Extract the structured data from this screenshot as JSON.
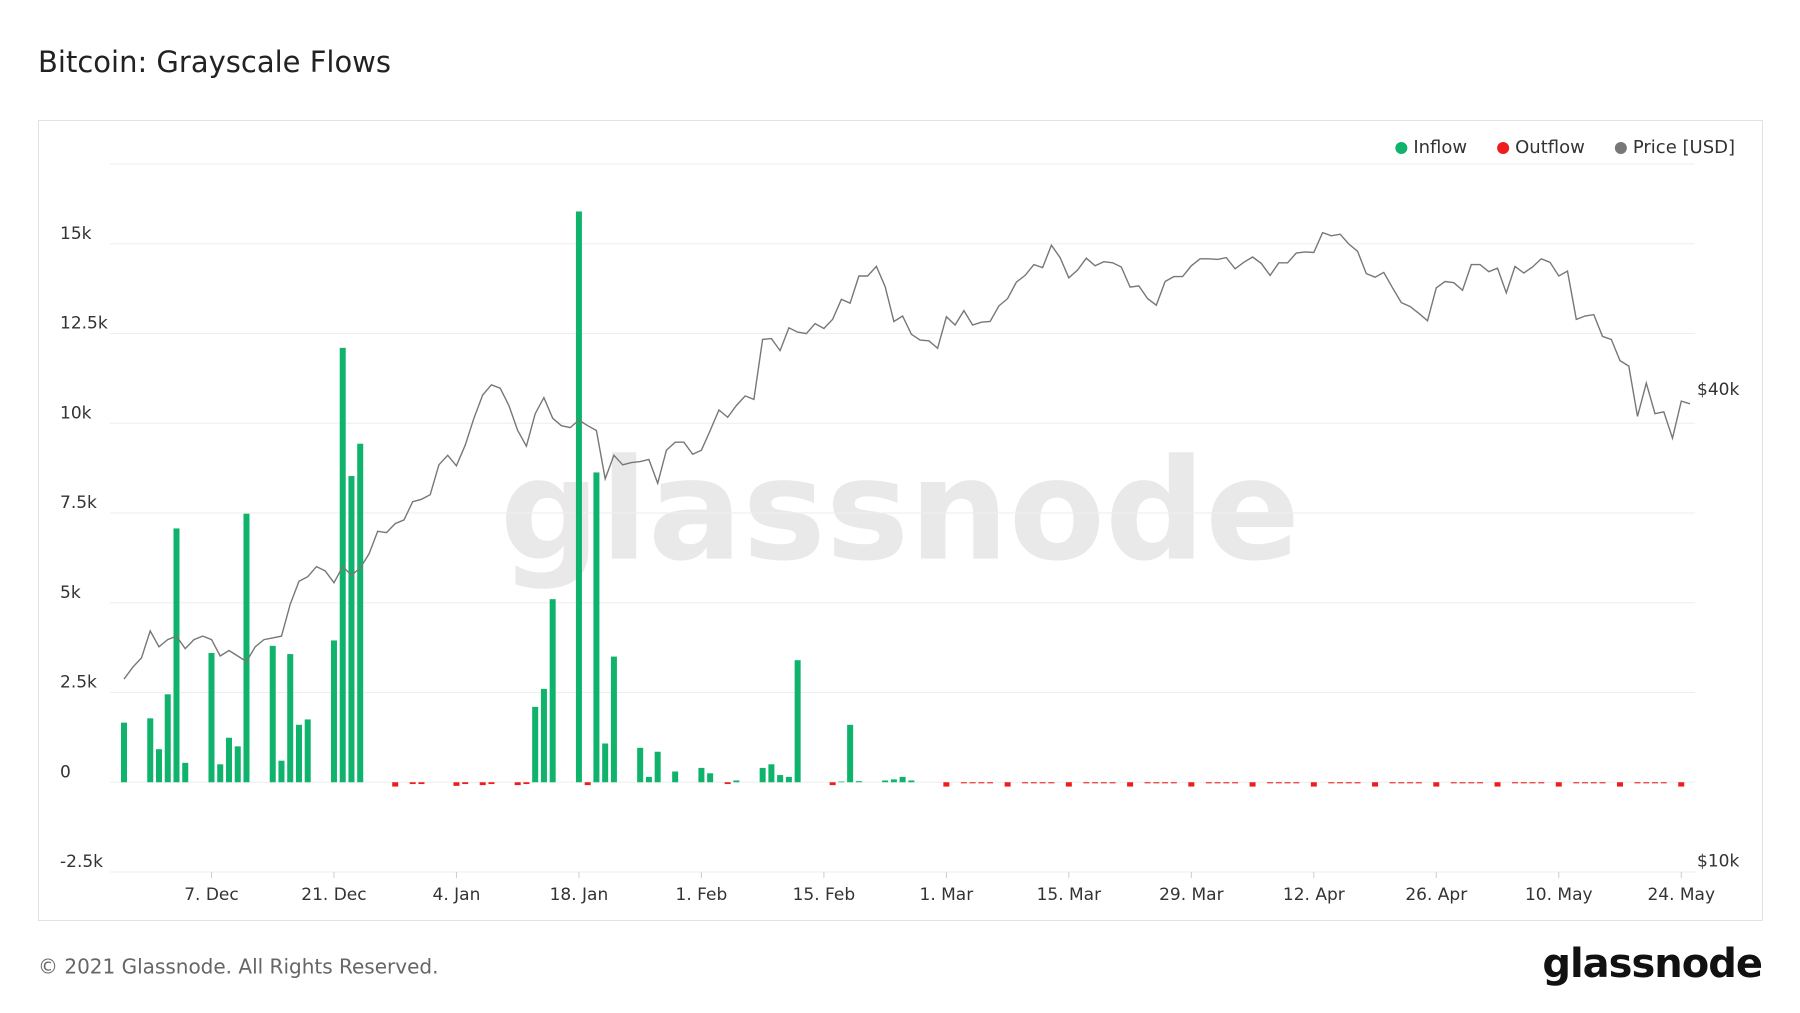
{
  "chart_data": {
    "type": "bar",
    "title": "Bitcoin: Grayscale Flows",
    "categories": [
      null,
      null,
      null,
      null,
      null,
      null,
      null,
      null,
      null,
      null,
      "7. Dec",
      null,
      null,
      null,
      null,
      null,
      null,
      null,
      null,
      null,
      null,
      null,
      null,
      null,
      "21. Dec",
      null,
      null,
      null,
      null,
      null,
      null,
      null,
      null,
      null,
      null,
      null,
      null,
      null,
      "4. Jan",
      null,
      null,
      null,
      null,
      null,
      null,
      null,
      null,
      null,
      null,
      null,
      null,
      null,
      "18. Jan",
      null,
      null,
      null,
      null,
      null,
      null,
      null,
      null,
      null,
      null,
      null,
      null,
      null,
      "1. Feb",
      null,
      null,
      null,
      null,
      null,
      null,
      null,
      null,
      null,
      null,
      null,
      null,
      null,
      "15. Feb",
      null,
      null,
      null,
      null,
      null,
      null,
      null,
      null,
      null,
      null,
      null,
      null,
      null,
      "1. Mar",
      null,
      null,
      null,
      null,
      null,
      null,
      null,
      null,
      null,
      null,
      null,
      null,
      null,
      "15. Mar",
      null,
      null,
      null,
      null,
      null,
      null,
      null,
      null,
      null,
      null,
      null,
      null,
      null,
      "29. Mar",
      null,
      null,
      null,
      null,
      null,
      null,
      null,
      null,
      null,
      null,
      null,
      null,
      null,
      "12. Apr",
      null,
      null,
      null,
      null,
      null,
      null,
      null,
      null,
      null,
      null,
      null,
      null,
      null,
      "26. Apr",
      null,
      null,
      null,
      null,
      null,
      null,
      null,
      null,
      null,
      null,
      null,
      null,
      null,
      "10. May",
      null,
      null,
      null,
      null,
      null,
      null,
      null,
      null,
      null,
      null,
      null,
      null,
      null,
      "24. May",
      null
    ],
    "series": [
      {
        "name": "Inflow",
        "color": "#0fb36b",
        "values": [
          1660,
          null,
          null,
          1780,
          920,
          2450,
          7070,
          540,
          null,
          null,
          3600,
          500,
          1240,
          1000,
          7480,
          null,
          null,
          3800,
          600,
          3570,
          1600,
          1750,
          null,
          null,
          3950,
          12100,
          8530,
          9430,
          null,
          null,
          null,
          null,
          null,
          null,
          null,
          null,
          null,
          null,
          null,
          null,
          null,
          null,
          null,
          null,
          null,
          null,
          null,
          2100,
          2600,
          5100,
          null,
          null,
          15900,
          null,
          8630,
          1080,
          3500,
          null,
          null,
          960,
          150,
          850,
          null,
          300,
          null,
          null,
          400,
          250,
          null,
          null,
          50,
          null,
          null,
          400,
          500,
          200,
          150,
          3400,
          null,
          null,
          null,
          null,
          20,
          1600,
          30,
          null,
          null,
          50,
          80,
          150,
          50,
          null,
          null,
          null,
          null,
          null,
          null,
          null,
          null,
          null,
          null,
          null,
          null,
          null,
          null,
          null,
          null,
          null,
          null,
          null,
          null,
          null,
          null,
          null,
          null,
          null,
          null,
          null,
          null,
          null,
          null,
          null,
          null,
          null,
          null,
          null,
          null,
          null,
          null,
          null,
          null,
          null,
          null,
          null,
          null,
          null,
          null,
          null,
          null,
          null,
          null,
          null,
          null,
          null,
          null,
          null,
          null,
          null,
          null,
          null,
          null,
          null,
          null,
          null,
          null,
          null,
          null,
          null,
          null,
          null,
          null,
          null,
          null,
          null,
          null,
          null,
          null,
          null,
          null,
          null,
          null,
          null,
          null,
          null,
          null,
          null,
          null,
          null,
          null,
          null
        ]
      },
      {
        "name": "Outflow",
        "color": "#ee1c1c",
        "values": [
          null,
          null,
          null,
          null,
          null,
          null,
          null,
          null,
          null,
          null,
          null,
          null,
          null,
          null,
          null,
          null,
          null,
          null,
          null,
          null,
          null,
          null,
          null,
          null,
          null,
          null,
          null,
          null,
          null,
          null,
          null,
          -120,
          null,
          -50,
          -50,
          null,
          null,
          null,
          -100,
          -50,
          null,
          -80,
          -50,
          null,
          null,
          -80,
          -50,
          null,
          null,
          null,
          null,
          null,
          null,
          -80,
          null,
          null,
          null,
          null,
          null,
          null,
          null,
          null,
          null,
          null,
          null,
          null,
          null,
          null,
          null,
          -50,
          null,
          null,
          null,
          null,
          null,
          null,
          null,
          null,
          null,
          null,
          null,
          -80,
          null,
          null,
          null,
          null,
          null,
          null,
          null,
          null,
          null,
          null,
          null,
          null,
          -120,
          null,
          -30,
          -30,
          -30,
          -30,
          null,
          -120,
          null,
          -30,
          -30,
          -30,
          -30,
          null,
          -120,
          null,
          -30,
          -30,
          -30,
          -30,
          null,
          -120,
          null,
          -30,
          -30,
          -30,
          -30,
          null,
          -120,
          null,
          -30,
          -30,
          -30,
          -30,
          null,
          -120,
          null,
          -30,
          -30,
          -30,
          -30,
          null,
          -120,
          null,
          -30,
          -30,
          -30,
          -30,
          null,
          -120,
          null,
          -30,
          -30,
          -30,
          -30,
          null,
          -120,
          null,
          -30,
          -30,
          -30,
          -30,
          null,
          -120,
          null,
          -30,
          -30,
          -30,
          -30,
          null,
          -120,
          null,
          -30,
          -30,
          -30,
          -30,
          null,
          -120,
          null,
          -30,
          -30,
          -30,
          -30,
          null,
          -120,
          null
        ]
      },
      {
        "name": "Price [USD]",
        "color": "#777777",
        "axis": "y2",
        "values": [
          17100,
          17700,
          18200,
          19700,
          18800,
          19200,
          19400,
          18700,
          19200,
          19400,
          19200,
          18300,
          18600,
          18300,
          18000,
          18800,
          19200,
          19300,
          19400,
          21300,
          22800,
          23100,
          23800,
          23500,
          22700,
          23800,
          23200,
          23700,
          24700,
          26400,
          26300,
          27000,
          27300,
          28800,
          29000,
          29400,
          32100,
          33000,
          32000,
          34000,
          36800,
          39400,
          40600,
          40200,
          38200,
          35500,
          33900,
          37300,
          39100,
          36800,
          36000,
          35800,
          36600,
          36000,
          35500,
          30800,
          33000,
          32100,
          32300,
          32400,
          32600,
          30400,
          33500,
          34300,
          34300,
          33100,
          33500,
          35500,
          37700,
          36900,
          38200,
          39300,
          38900,
          46400,
          46500,
          44900,
          48000,
          47400,
          47200,
          48600,
          47900,
          49200,
          52200,
          51600,
          55900,
          55900,
          57500,
          54200,
          48900,
          49700,
          47100,
          46300,
          46200,
          45200,
          49600,
          48400,
          50500,
          48400,
          48800,
          48900,
          51200,
          52300,
          54900,
          56000,
          57800,
          57300,
          61200,
          59000,
          55600,
          56900,
          58900,
          57600,
          58300,
          58100,
          57400,
          54100,
          54300,
          52300,
          51300,
          55000,
          55800,
          55800,
          57600,
          58800,
          58800,
          58700,
          59000,
          57100,
          58200,
          59100,
          58000,
          56000,
          58100,
          58100,
          59800,
          60000,
          59900,
          63500,
          62900,
          63200,
          61400,
          60100,
          56300,
          55700,
          56500,
          54000,
          51700,
          51100,
          50100,
          49000,
          54000,
          55000,
          54800,
          53600,
          57800,
          57800,
          56600,
          57200,
          53200,
          57500,
          56400,
          57400,
          58800,
          58200,
          55900,
          56700,
          49200,
          49700,
          49900,
          46800,
          46400,
          43600,
          42900,
          37000,
          40800,
          37300,
          37500,
          34700,
          38700,
          38400
        ]
      }
    ],
    "ylim": [
      -2500,
      17500
    ],
    "yticks": [
      {
        "value": -2500,
        "label": "-2.5k"
      },
      0,
      {
        "value": 2500,
        "label": "2.5k"
      },
      {
        "value": 5000,
        "label": "5k"
      },
      {
        "value": 7500,
        "label": "7.5k"
      },
      {
        "value": 10000,
        "label": "10k"
      },
      {
        "value": 12500,
        "label": "12.5k"
      },
      {
        "value": 15000,
        "label": "15k"
      }
    ],
    "y2lim": [
      9700,
      80000
    ],
    "y2log": true,
    "y2ticks": [
      {
        "value": 10000,
        "label": "$10k"
      },
      {
        "value": 40000,
        "label": "$40k"
      }
    ],
    "grid": true,
    "legend": "top-right"
  },
  "footer": "© 2021 Glassnode. All Rights Reserved.",
  "brand": "glassnode"
}
